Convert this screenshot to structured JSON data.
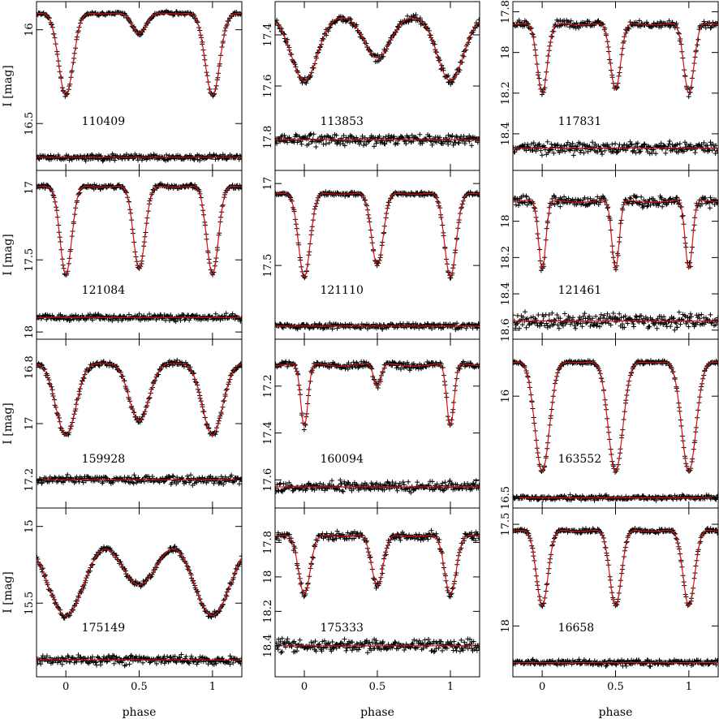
{
  "colors": {
    "model": "#e01010",
    "points": "#000000",
    "frame": "#000000"
  },
  "chart_data": {
    "type": "scatter",
    "xlabel": "phase",
    "ylabel": "I [mag]",
    "xlim": [
      -0.2,
      1.2
    ],
    "xticks": [
      0,
      0.5,
      1
    ],
    "xtick_labels": [
      "0",
      "0.5",
      "1"
    ],
    "panels": [
      {
        "id": "110409",
        "ylim": [
          15.85,
          16.75
        ],
        "yticks": [
          16,
          16.5
        ],
        "ytick_labels": [
          "16",
          "16.5"
        ],
        "max_mag": 15.9,
        "depth1": 0.45,
        "depth2": 0.12,
        "width": 0.05,
        "resid_level": 16.68,
        "resid_scatter": 0.01
      },
      {
        "id": "113853",
        "ylim": [
          17.27,
          17.93
        ],
        "yticks": [
          17.4,
          17.6,
          17.8
        ],
        "ytick_labels": [
          "17.4",
          "17.6",
          "17.8"
        ],
        "max_mag": 17.31,
        "depth1": 0.27,
        "depth2": 0.18,
        "width": 0.09,
        "resid_level": 17.81,
        "resid_scatter": 0.015
      },
      {
        "id": "117831",
        "ylim": [
          17.75,
          18.58
        ],
        "yticks": [
          17.8,
          18,
          18.2,
          18.4
        ],
        "ytick_labels": [
          "17.8",
          "18",
          "18.2",
          "18.4"
        ],
        "max_mag": 17.85,
        "depth1": 0.35,
        "depth2": 0.33,
        "width": 0.035,
        "resid_level": 18.47,
        "resid_scatter": 0.02
      },
      {
        "id": "121084",
        "ylim": [
          16.88,
          18.05
        ],
        "yticks": [
          17,
          17.5,
          18
        ],
        "ytick_labels": [
          "17",
          "17.5",
          "18"
        ],
        "max_mag": 16.98,
        "depth1": 0.62,
        "depth2": 0.58,
        "width": 0.04,
        "resid_level": 17.9,
        "resid_scatter": 0.015
      },
      {
        "id": "121110",
        "ylim": [
          16.92,
          17.95
        ],
        "yticks": [
          17,
          17.5
        ],
        "ytick_labels": [
          "17",
          "17.5"
        ],
        "max_mag": 17.05,
        "depth1": 0.52,
        "depth2": 0.45,
        "width": 0.04,
        "resid_level": 17.87,
        "resid_scatter": 0.012
      },
      {
        "id": "121461",
        "ylim": [
          17.72,
          18.65
        ],
        "yticks": [
          18,
          18.2,
          18.4,
          18.6
        ],
        "ytick_labels": [
          "18",
          "18.2",
          "18.4",
          "18.6"
        ],
        "max_mag": 17.88,
        "depth1": 0.38,
        "depth2": 0.38,
        "width": 0.025,
        "resid_level": 18.55,
        "resid_scatter": 0.03
      },
      {
        "id": "159928",
        "ylim": [
          16.7,
          17.3
        ],
        "yticks": [
          16.8,
          17,
          17.2
        ],
        "ytick_labels": [
          "16.8",
          "17",
          "17.2"
        ],
        "max_mag": 16.77,
        "depth1": 0.27,
        "depth2": 0.22,
        "width": 0.07,
        "resid_level": 17.2,
        "resid_scatter": 0.01
      },
      {
        "id": "160094",
        "ylim": [
          17.0,
          17.72
        ],
        "yticks": [
          17.2,
          17.4,
          17.6
        ],
        "ytick_labels": [
          "17.2",
          "17.4",
          "17.6"
        ],
        "max_mag": 17.1,
        "depth1": 0.27,
        "depth2": 0.1,
        "width": 0.025,
        "resid_level": 17.63,
        "resid_scatter": 0.015
      },
      {
        "id": "163552",
        "ylim": [
          15.72,
          16.55
        ],
        "yticks": [
          16,
          16.5
        ],
        "ytick_labels": [
          "16",
          "16.5"
        ],
        "max_mag": 15.82,
        "depth1": 0.55,
        "depth2": 0.55,
        "width": 0.05,
        "resid_level": 16.5,
        "resid_scatter": 0.008
      },
      {
        "id": "175149",
        "ylim": [
          14.88,
          15.98
        ],
        "yticks": [
          15,
          15.5
        ],
        "ytick_labels": [
          "15",
          "15.5"
        ],
        "max_mag": 14.98,
        "depth1": 0.6,
        "depth2": 0.4,
        "width": 0.13,
        "resid_level": 15.87,
        "resid_scatter": 0.02
      },
      {
        "id": "175333",
        "ylim": [
          17.6,
          18.58
        ],
        "yticks": [
          17.8,
          18,
          18.2,
          18.4
        ],
        "ytick_labels": [
          "17.8",
          "18",
          "18.2",
          "18.4"
        ],
        "max_mag": 17.75,
        "depth1": 0.35,
        "depth2": 0.3,
        "width": 0.04,
        "resid_level": 18.4,
        "resid_scatter": 0.025
      },
      {
        "id": "16658",
        "ylim": [
          17.42,
          18.25
        ],
        "yticks": [
          17.5,
          18
        ],
        "ytick_labels": [
          "17.5",
          "18"
        ],
        "max_mag": 17.52,
        "depth1": 0.38,
        "depth2": 0.38,
        "width": 0.04,
        "resid_level": 18.18,
        "resid_scatter": 0.01
      }
    ]
  }
}
